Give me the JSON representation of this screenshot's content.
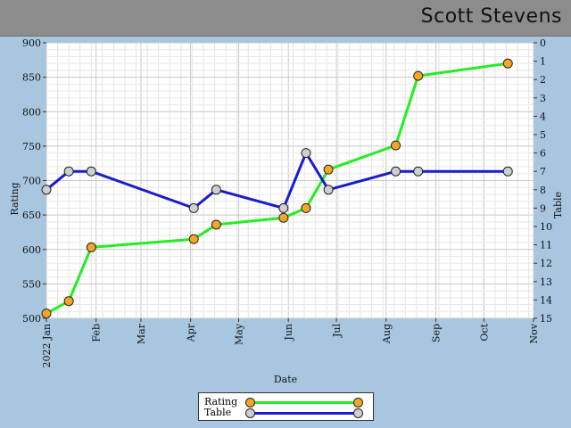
{
  "header": {
    "title": "Scott Stevens"
  },
  "chart_data": {
    "type": "line",
    "xlabel": "Date",
    "ylabel_left": "Rating",
    "ylabel_right": "Table",
    "x_ticks": [
      {
        "label": "2022 Jan",
        "date": "2022-01-01"
      },
      {
        "label": "Feb",
        "date": "2022-02-01"
      },
      {
        "label": "Mar",
        "date": "2022-03-01"
      },
      {
        "label": "Apr",
        "date": "2022-04-01"
      },
      {
        "label": "May",
        "date": "2022-05-01"
      },
      {
        "label": "Jun",
        "date": "2022-06-01"
      },
      {
        "label": "Jul",
        "date": "2022-07-01"
      },
      {
        "label": "Aug",
        "date": "2022-08-01"
      },
      {
        "label": "Sep",
        "date": "2022-09-01"
      },
      {
        "label": "Oct",
        "date": "2022-10-01"
      },
      {
        "label": "Nov",
        "date": "2022-11-01"
      }
    ],
    "xlim": [
      "2022-01-01",
      "2022-11-01"
    ],
    "ylim_left": [
      500,
      900
    ],
    "ylim_right": [
      15,
      0
    ],
    "left_ticks": [
      500,
      550,
      600,
      650,
      700,
      750,
      800,
      850,
      900
    ],
    "right_ticks": [
      0,
      1,
      2,
      3,
      4,
      5,
      6,
      7,
      8,
      9,
      10,
      11,
      12,
      13,
      14,
      15
    ],
    "grid": true,
    "legend_position": "bottom-center",
    "series": [
      {
        "name": "Rating",
        "axis": "left",
        "color": "#22ee22",
        "marker_color": "#f5a623",
        "points": [
          {
            "x": "2022-01-01",
            "y": 507
          },
          {
            "x": "2022-01-15",
            "y": 525
          },
          {
            "x": "2022-01-29",
            "y": 603
          },
          {
            "x": "2022-04-03",
            "y": 615
          },
          {
            "x": "2022-04-17",
            "y": 636
          },
          {
            "x": "2022-05-29",
            "y": 646
          },
          {
            "x": "2022-06-12",
            "y": 660
          },
          {
            "x": "2022-06-26",
            "y": 716
          },
          {
            "x": "2022-08-07",
            "y": 751
          },
          {
            "x": "2022-08-21",
            "y": 852
          },
          {
            "x": "2022-10-16",
            "y": 870
          }
        ]
      },
      {
        "name": "Table",
        "axis": "right",
        "color": "#1a1ad0",
        "marker_color": "#cfcfcf",
        "points": [
          {
            "x": "2022-01-01",
            "y": 8
          },
          {
            "x": "2022-01-15",
            "y": 7
          },
          {
            "x": "2022-01-29",
            "y": 7
          },
          {
            "x": "2022-04-03",
            "y": 9
          },
          {
            "x": "2022-04-17",
            "y": 8
          },
          {
            "x": "2022-05-29",
            "y": 9
          },
          {
            "x": "2022-06-12",
            "y": 6
          },
          {
            "x": "2022-06-26",
            "y": 8
          },
          {
            "x": "2022-08-07",
            "y": 7
          },
          {
            "x": "2022-08-21",
            "y": 7
          },
          {
            "x": "2022-10-16",
            "y": 7
          }
        ]
      }
    ]
  }
}
